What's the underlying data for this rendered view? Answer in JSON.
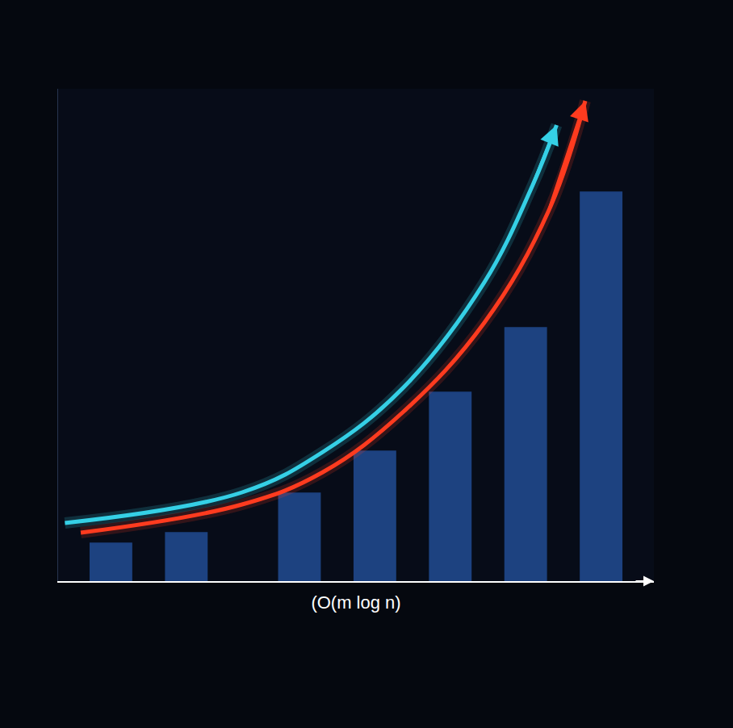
{
  "chart_data": {
    "type": "bar",
    "x_label": "(O(m log n)",
    "x": [
      1,
      2,
      3.5,
      4.5,
      5.5,
      6.5,
      7.5
    ],
    "values": [
      47,
      60,
      109,
      161,
      234,
      314,
      482
    ],
    "color": "#2f6fd6",
    "xlim": [
      0.3,
      8.2
    ],
    "ylim": [
      0,
      610
    ],
    "xticks": [],
    "yticks": [],
    "tick_labels": false,
    "grid": false,
    "series": [
      {
        "type": "line",
        "color": "#ff3b1f",
        "line_style": "solid",
        "marker": "arrow",
        "x": [
          0.6,
          2.74,
          3.81,
          4.88,
          5.95,
          6.81,
          7.29
        ],
        "values": [
          60,
          95,
          135,
          210,
          320,
          460,
          595
        ]
      },
      {
        "type": "line",
        "color": "#35d0e6",
        "line_style": "solid",
        "marker": "arrow",
        "x": [
          0.39,
          2.74,
          3.81,
          4.88,
          5.95,
          6.59,
          6.91
        ],
        "values": [
          72,
          110,
          160,
          240,
          370,
          490,
          565
        ]
      }
    ]
  }
}
